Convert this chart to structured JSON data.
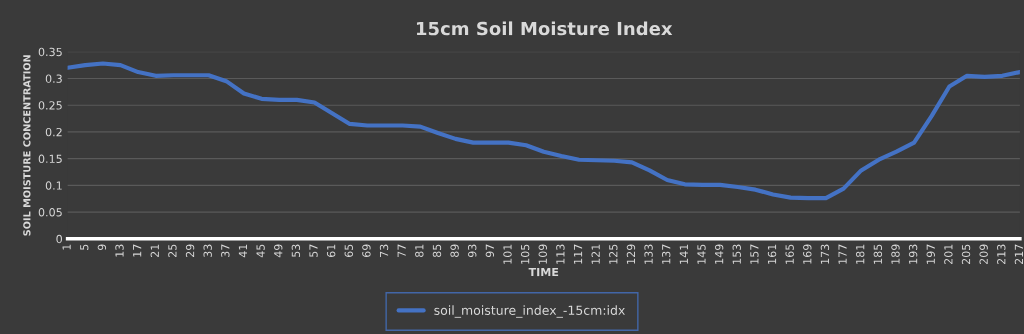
{
  "chart_data": {
    "type": "line",
    "title": "15cm Soil Moisture Index",
    "xlabel": "TIME",
    "ylabel": "SOIL MOISTURE CONCENTRATION",
    "x": [
      1,
      5,
      9,
      13,
      17,
      21,
      25,
      29,
      33,
      37,
      41,
      45,
      49,
      53,
      57,
      61,
      65,
      69,
      73,
      77,
      81,
      85,
      89,
      93,
      97,
      101,
      105,
      109,
      113,
      117,
      121,
      125,
      129,
      133,
      137,
      141,
      145,
      149,
      153,
      157,
      161,
      165,
      169,
      173,
      177,
      181,
      185,
      189,
      193,
      197,
      201,
      205,
      209,
      213,
      217
    ],
    "series": [
      {
        "name": "soil_moisture_index_-15cm:idx",
        "color": "#4472c4",
        "values": [
          0.32,
          0.325,
          0.328,
          0.325,
          0.312,
          0.305,
          0.306,
          0.306,
          0.306,
          0.295,
          0.272,
          0.262,
          0.26,
          0.26,
          0.255,
          0.235,
          0.215,
          0.212,
          0.212,
          0.212,
          0.21,
          0.198,
          0.187,
          0.18,
          0.18,
          0.18,
          0.175,
          0.163,
          0.155,
          0.148,
          0.147,
          0.146,
          0.143,
          0.128,
          0.11,
          0.102,
          0.101,
          0.101,
          0.097,
          0.092,
          0.083,
          0.077,
          0.076,
          0.076,
          0.094,
          0.128,
          0.148,
          0.163,
          0.18,
          0.23,
          0.285,
          0.305,
          0.303,
          0.305,
          0.312
        ]
      }
    ],
    "xlim": [
      1,
      217
    ],
    "xticks": [
      1,
      5,
      9,
      13,
      17,
      21,
      25,
      29,
      33,
      37,
      41,
      45,
      49,
      53,
      57,
      61,
      65,
      69,
      73,
      77,
      81,
      85,
      89,
      93,
      97,
      101,
      105,
      109,
      113,
      117,
      121,
      125,
      129,
      133,
      137,
      141,
      145,
      149,
      153,
      157,
      161,
      165,
      169,
      173,
      177,
      181,
      185,
      189,
      193,
      197,
      201,
      205,
      209,
      213,
      217
    ],
    "ylim": [
      0,
      0.35
    ],
    "yticks": [
      0,
      {
        "value": 0.05,
        "label": "0.05"
      },
      {
        "value": 0.1,
        "label": "0.1"
      },
      {
        "value": 0.15,
        "label": "0.15"
      },
      {
        "value": 0.2,
        "label": "0.2"
      },
      {
        "value": 0.25,
        "label": "0.25"
      },
      {
        "value": 0.3,
        "label": "0.3"
      },
      {
        "value": 0.35,
        "label": "0.35"
      }
    ],
    "grid": "y",
    "legend": "bottom",
    "marker": "none",
    "line_style": "solid"
  }
}
